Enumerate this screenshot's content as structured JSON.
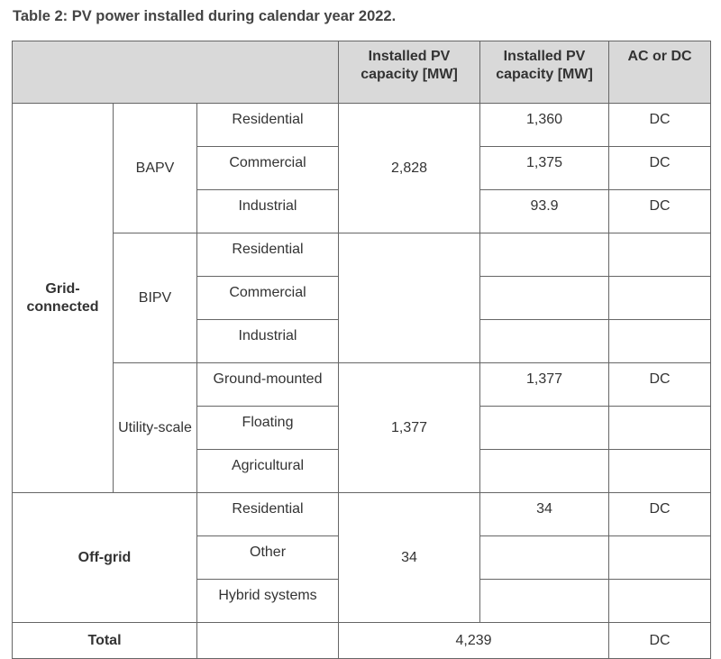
{
  "caption": "Table 2: PV power installed during calendar year 2022.",
  "headers": {
    "capacity_total": "Installed PV capacity [MW]",
    "capacity_detail": "Installed PV capacity [MW]",
    "ac_or_dc": "AC or DC"
  },
  "grid_connected": {
    "label": "Grid-connected",
    "bapv": {
      "label": "BAPV",
      "total": "2,828",
      "rows": [
        {
          "segment": "Residential",
          "capacity": "1,360",
          "acdc": "DC"
        },
        {
          "segment": "Commercial",
          "capacity": "1,375",
          "acdc": "DC"
        },
        {
          "segment": "Industrial",
          "capacity": "93.9",
          "acdc": "DC"
        }
      ]
    },
    "bipv": {
      "label": "BIPV",
      "total": "",
      "rows": [
        {
          "segment": "Residential",
          "capacity": "",
          "acdc": ""
        },
        {
          "segment": "Commercial",
          "capacity": "",
          "acdc": ""
        },
        {
          "segment": "Industrial",
          "capacity": "",
          "acdc": ""
        }
      ]
    },
    "utility": {
      "label": "Utility-scale",
      "total": "1,377",
      "rows": [
        {
          "segment": "Ground-mounted",
          "capacity": "1,377",
          "acdc": "DC"
        },
        {
          "segment": "Floating",
          "capacity": "",
          "acdc": ""
        },
        {
          "segment": "Agricultural",
          "capacity": "",
          "acdc": ""
        }
      ]
    }
  },
  "off_grid": {
    "label": "Off-grid",
    "total": "34",
    "rows": [
      {
        "segment": "Residential",
        "capacity": "34",
        "acdc": "DC"
      },
      {
        "segment": "Other",
        "capacity": "",
        "acdc": ""
      },
      {
        "segment": "Hybrid systems",
        "capacity": "",
        "acdc": ""
      }
    ]
  },
  "total": {
    "label": "Total",
    "value": "4,239",
    "acdc": "DC"
  }
}
